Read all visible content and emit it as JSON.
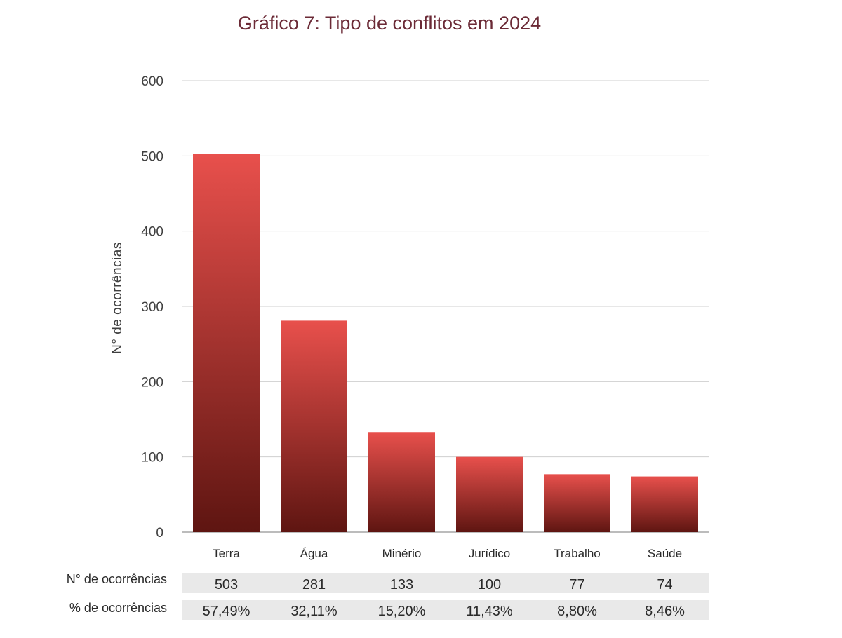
{
  "chart_data": {
    "type": "bar",
    "title": "Gráfico 7: Tipo de conflitos em 2024",
    "ylabel": "N° de ocorrências",
    "xlabel": "",
    "ylim": [
      0,
      600
    ],
    "yticks": [
      "0",
      "100",
      "200",
      "300",
      "400",
      "500",
      "600"
    ],
    "categories": [
      "Terra",
      "Água",
      "Minério",
      "Jurídico",
      "Trabalho",
      "Saúde"
    ],
    "values": [
      503,
      281,
      133,
      100,
      77,
      74
    ],
    "grid": true,
    "bar_color_top": "#e8504c",
    "bar_color_bottom": "#5e1511",
    "table": {
      "rows": [
        {
          "label": "N° de ocorrências",
          "cells": [
            "503",
            "281",
            "133",
            "100",
            "77",
            "74"
          ]
        },
        {
          "label": "% de ocorrências",
          "cells": [
            "57,49%",
            "32,11%",
            "15,20%",
            "11,43%",
            "8,80%",
            "8,46%"
          ]
        }
      ]
    }
  }
}
